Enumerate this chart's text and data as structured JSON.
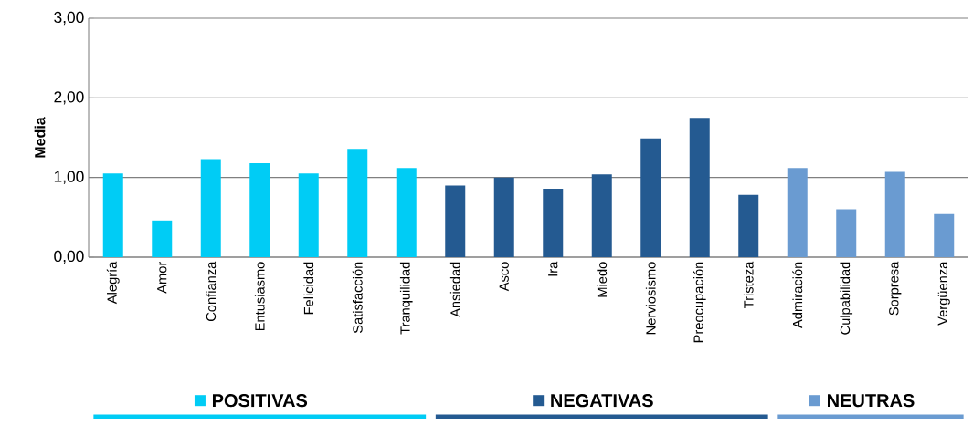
{
  "chart_data": {
    "type": "bar",
    "ylabel": "Media",
    "categories": [
      "Alegría",
      "Amor",
      "Confianza",
      "Entusiasmo",
      "Felicidad",
      "Satisfacción",
      "Tranquilidad",
      "Ansiedad",
      "Asco",
      "Ira",
      "Miedo",
      "Nerviosismo",
      "Preocupación",
      "Tristeza",
      "Admiración",
      "Culpabilidad",
      "Sorpresa",
      "Vergüenza"
    ],
    "series": [
      {
        "name": "POSITIVAS",
        "color": "#00ccf5",
        "values": [
          1.05,
          0.46,
          1.23,
          1.18,
          1.05,
          1.36,
          1.12,
          null,
          null,
          null,
          null,
          null,
          null,
          null,
          null,
          null,
          null,
          null
        ]
      },
      {
        "name": "NEGATIVAS",
        "color": "#245a91",
        "values": [
          null,
          null,
          null,
          null,
          null,
          null,
          null,
          0.9,
          1.0,
          0.86,
          1.04,
          1.49,
          1.75,
          0.78,
          null,
          null,
          null,
          null
        ]
      },
      {
        "name": "NEUTRAS",
        "color": "#6a9bd1",
        "values": [
          null,
          null,
          null,
          null,
          null,
          null,
          null,
          null,
          null,
          null,
          null,
          null,
          null,
          null,
          1.12,
          0.6,
          1.07,
          0.54
        ]
      }
    ],
    "ylim": [
      0,
      3
    ],
    "yticks": [
      {
        "value": 0,
        "label": "0,00"
      },
      {
        "value": 1,
        "label": "1,00"
      },
      {
        "value": 2,
        "label": "2,00"
      },
      {
        "value": 3,
        "label": "3,00"
      }
    ],
    "grid": "y",
    "legend": "bottom"
  }
}
